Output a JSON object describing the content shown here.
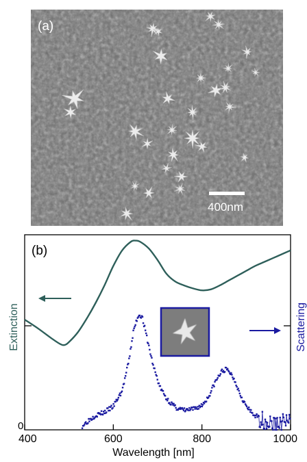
{
  "panel_a": {
    "label": "(a)",
    "scale_bar_label": "400nm"
  },
  "panel_b": {
    "label": "(b)"
  },
  "colors": {
    "extinction": "#2e5f5a",
    "scattering": "#1a1aa0",
    "sem_background": "#6f6f6f"
  },
  "chart_data": {
    "type": "line",
    "xlabel": "Wavelength [nm]",
    "x_ticks": [
      "400",
      "600",
      "800",
      "1000"
    ],
    "xlim": [
      400,
      1000
    ],
    "ylabel_left": "Extinction",
    "ylabel_right": "Scattering",
    "y_zero_label": "0",
    "ylim": [
      0,
      1
    ],
    "grid": false,
    "series": [
      {
        "name": "Extinction",
        "x": [
          400,
          430,
          460,
          480,
          490,
          500,
          520,
          540,
          560,
          580,
          600,
          620,
          640,
          650,
          660,
          680,
          700,
          720,
          740,
          760,
          780,
          800,
          820,
          840,
          860,
          880,
          900,
          920,
          940,
          960,
          980,
          1000
        ],
        "y": [
          0.565,
          0.52,
          0.47,
          0.44,
          0.435,
          0.45,
          0.5,
          0.57,
          0.65,
          0.74,
          0.84,
          0.92,
          0.965,
          0.97,
          0.965,
          0.93,
          0.87,
          0.8,
          0.76,
          0.74,
          0.725,
          0.715,
          0.72,
          0.74,
          0.765,
          0.79,
          0.815,
          0.84,
          0.86,
          0.88,
          0.9,
          0.92
        ]
      },
      {
        "name": "Scattering",
        "x": [
          530,
          545,
          560,
          580,
          600,
          620,
          635,
          645,
          655,
          660,
          665,
          675,
          690,
          705,
          720,
          740,
          760,
          780,
          800,
          815,
          830,
          845,
          855,
          865,
          875,
          885,
          900,
          915,
          930,
          945,
          960,
          975,
          990,
          1000
        ],
        "y": [
          0.02,
          0.05,
          0.075,
          0.09,
          0.12,
          0.2,
          0.35,
          0.5,
          0.58,
          0.59,
          0.58,
          0.48,
          0.33,
          0.22,
          0.16,
          0.115,
          0.1,
          0.105,
          0.125,
          0.17,
          0.245,
          0.3,
          0.31,
          0.29,
          0.25,
          0.19,
          0.12,
          0.08,
          0.06,
          0.04,
          0.03,
          0.03,
          0.05,
          0.03
        ]
      }
    ]
  }
}
